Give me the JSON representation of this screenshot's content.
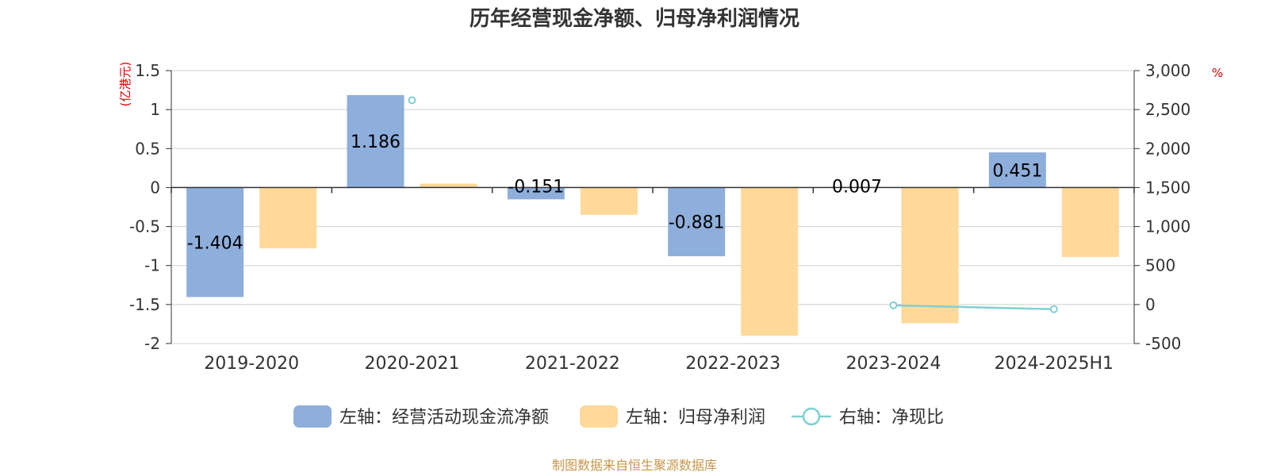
{
  "title": "历年经营现金净额、归母净利润情况",
  "source": "制图数据来自恒生聚源数据库",
  "left_unit": "(亿港元)",
  "right_unit": "%",
  "colors": {
    "cash": "#8eaedc",
    "profit": "#fed99a",
    "ratio": "#7fd0d4"
  },
  "chart_data": {
    "type": "bar",
    "title": "历年经营现金净额、归母净利润情况",
    "categories": [
      "2019-2020",
      "2020-2021",
      "2021-2022",
      "2022-2023",
      "2023-2024",
      "2024-2025H1"
    ],
    "y_left": {
      "unit": "(亿港元)",
      "lim": [
        -2,
        1.5
      ],
      "ticks": [
        "-2",
        "-1.5",
        "-1",
        "-0.5",
        "0",
        "0.5",
        "1",
        "1.5"
      ],
      "tick_values": [
        -2,
        -1.5,
        -1,
        -0.5,
        0,
        0.5,
        1,
        1.5
      ]
    },
    "y_right": {
      "unit": "%",
      "lim": [
        -500,
        3000
      ],
      "ticks": [
        "-500",
        "0",
        "500",
        "1,000",
        "1,500",
        "2,000",
        "2,500",
        "3,000"
      ],
      "tick_values": [
        -500,
        0,
        500,
        1000,
        1500,
        2000,
        2500,
        3000
      ]
    },
    "series": [
      {
        "name": "左轴：经营活动现金流净额",
        "axis": "left",
        "type": "bar",
        "values": [
          -1.404,
          1.186,
          -0.151,
          -0.881,
          0.007,
          0.451
        ],
        "labels": [
          "-1.404",
          "1.186",
          "-0.151",
          "-0.881",
          "0.007",
          "0.451"
        ]
      },
      {
        "name": "左轴：归母净利润",
        "axis": "left",
        "type": "bar",
        "values": [
          -0.78,
          0.05,
          -0.35,
          -1.9,
          -1.74,
          -0.89
        ]
      },
      {
        "name": "右轴：净现比",
        "axis": "right",
        "type": "line",
        "values": [
          null,
          2620,
          null,
          null,
          -10,
          -60
        ]
      }
    ]
  }
}
